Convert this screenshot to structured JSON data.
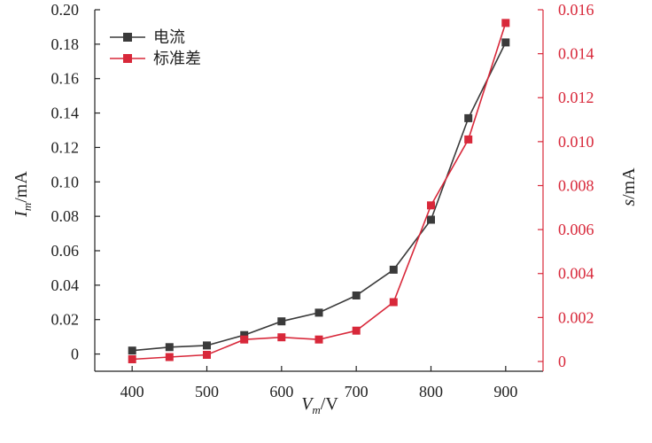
{
  "colors": {
    "current": "#3a3a3a",
    "std": "#d8283a",
    "axis_left": "#222222",
    "axis_right": "#d8283a"
  },
  "chart_data": {
    "type": "line",
    "xlabel": {
      "main": "V",
      "sub": "m",
      "unit": "/V"
    },
    "ylabel_left": {
      "main": "I",
      "sub": "m",
      "unit": "/mA"
    },
    "ylabel_right": {
      "main": "s",
      "unit": "/mA"
    },
    "xlim": [
      350,
      950
    ],
    "ylim_left": [
      -0.01,
      0.2
    ],
    "ylim_right": [
      -0.000444,
      0.016
    ],
    "x_ticks": [
      400,
      500,
      600,
      700,
      800,
      900
    ],
    "x_tick_labels": [
      "400",
      "500",
      "600",
      "700",
      "800",
      "900"
    ],
    "y_left_ticks": [
      0,
      0.02,
      0.04,
      0.06,
      0.08,
      0.1,
      0.12,
      0.14,
      0.16,
      0.18,
      0.2
    ],
    "y_left_tick_labels": [
      "0",
      "0.02",
      "0.04",
      "0.06",
      "0.08",
      "0.10",
      "0.12",
      "0.14",
      "0.16",
      "0.18",
      "0.20"
    ],
    "y_right_ticks": [
      0,
      0.002,
      0.004,
      0.006,
      0.008,
      0.01,
      0.012,
      0.014,
      0.016
    ],
    "y_right_tick_labels": [
      "0",
      "0.002",
      "0.004",
      "0.006",
      "0.008",
      "0.010",
      "0.012",
      "0.014",
      "0.016"
    ],
    "legend_position": "top-left",
    "grid": false,
    "series": [
      {
        "name": "电流",
        "axis": "left",
        "color": "#3a3a3a",
        "x": [
          400,
          450,
          500,
          550,
          600,
          650,
          700,
          750,
          800,
          850,
          900
        ],
        "y": [
          0.002,
          0.004,
          0.005,
          0.011,
          0.019,
          0.024,
          0.034,
          0.049,
          0.078,
          0.137,
          0.181
        ]
      },
      {
        "name": "标准差",
        "axis": "right",
        "color": "#d8283a",
        "x": [
          400,
          450,
          500,
          550,
          600,
          650,
          700,
          750,
          800,
          850,
          900
        ],
        "y": [
          0.0001,
          0.0002,
          0.0003,
          0.001,
          0.0011,
          0.001,
          0.0014,
          0.0027,
          0.0071,
          0.0101,
          0.0154
        ]
      }
    ]
  }
}
